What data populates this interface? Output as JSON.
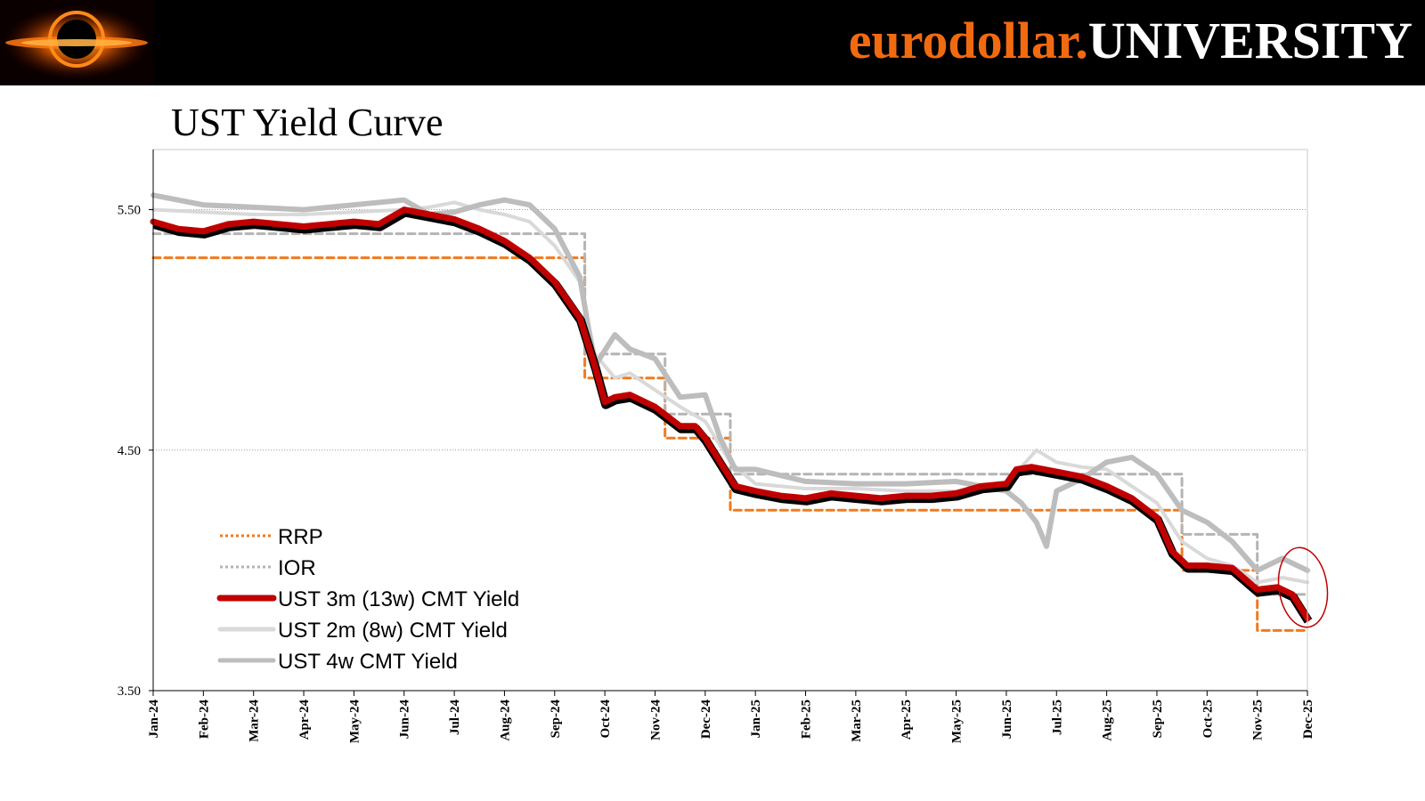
{
  "brand": {
    "part1": "eurodollar.",
    "part2": "UNIVERSITY"
  },
  "title": "UST Yield Curve",
  "colors": {
    "rrp": "#f07a1e",
    "ior": "#b4b4b4",
    "y3m": "#c00000",
    "y2m": "#d9d9d9",
    "y4w": "#bdbdbd",
    "annotation": "#c00000",
    "brand_orange": "#f26a10"
  },
  "chart_data": {
    "type": "line",
    "title": "UST Yield Curve",
    "xlabel": "",
    "ylabel": "",
    "ylim": [
      3.5,
      5.75
    ],
    "yticks": [
      3.5,
      4.5,
      5.5
    ],
    "ytick_labels": [
      "3.50",
      "4.50",
      "5.50"
    ],
    "x_range": [
      0,
      23
    ],
    "x_unit": "months since Jan-2024",
    "xtick_labels": [
      "Jan-24",
      "Feb-24",
      "Mar-24",
      "Apr-24",
      "May-24",
      "Jun-24",
      "Jul-24",
      "Aug-24",
      "Sep-24",
      "Oct-24",
      "Nov-24",
      "Dec-24",
      "Jan-25",
      "Feb-25",
      "Mar-25",
      "Apr-25",
      "May-25",
      "Jun-25",
      "Jul-25",
      "Aug-25",
      "Sep-25",
      "Oct-25",
      "Nov-25",
      "Dec-25"
    ],
    "gridlines": [
      4.5,
      5.5
    ],
    "legend_position": "bottom-left",
    "series": [
      {
        "name": "RRP",
        "style": "dotted-step",
        "points": [
          [
            0,
            5.3
          ],
          [
            8.6,
            5.3
          ],
          [
            8.6,
            4.8
          ],
          [
            10.2,
            4.8
          ],
          [
            10.2,
            4.55
          ],
          [
            11.5,
            4.55
          ],
          [
            11.5,
            4.25
          ],
          [
            20.5,
            4.25
          ],
          [
            20.5,
            4.0
          ],
          [
            22,
            4.0
          ],
          [
            22,
            3.75
          ],
          [
            23,
            3.75
          ]
        ]
      },
      {
        "name": "IOR",
        "style": "dotted-step",
        "points": [
          [
            0,
            5.4
          ],
          [
            8.6,
            5.4
          ],
          [
            8.6,
            4.9
          ],
          [
            10.2,
            4.9
          ],
          [
            10.2,
            4.65
          ],
          [
            11.5,
            4.65
          ],
          [
            11.5,
            4.4
          ],
          [
            20.5,
            4.4
          ],
          [
            20.5,
            4.15
          ],
          [
            22,
            4.15
          ],
          [
            22,
            3.9
          ],
          [
            23,
            3.9
          ]
        ]
      },
      {
        "name": "UST 3m (13w) CMT Yield",
        "style": "solid-thick",
        "points": [
          [
            0,
            5.45
          ],
          [
            0.5,
            5.42
          ],
          [
            1,
            5.41
          ],
          [
            1.5,
            5.44
          ],
          [
            2,
            5.45
          ],
          [
            2.5,
            5.44
          ],
          [
            3,
            5.43
          ],
          [
            3.5,
            5.44
          ],
          [
            4,
            5.45
          ],
          [
            4.5,
            5.44
          ],
          [
            5,
            5.5
          ],
          [
            5.5,
            5.48
          ],
          [
            6,
            5.46
          ],
          [
            6.5,
            5.42
          ],
          [
            7,
            5.37
          ],
          [
            7.5,
            5.3
          ],
          [
            8,
            5.2
          ],
          [
            8.5,
            5.05
          ],
          [
            8.8,
            4.85
          ],
          [
            9,
            4.7
          ],
          [
            9.2,
            4.72
          ],
          [
            9.5,
            4.73
          ],
          [
            10,
            4.68
          ],
          [
            10.5,
            4.6
          ],
          [
            10.8,
            4.6
          ],
          [
            11,
            4.55
          ],
          [
            11.3,
            4.45
          ],
          [
            11.6,
            4.35
          ],
          [
            12,
            4.33
          ],
          [
            12.5,
            4.31
          ],
          [
            13,
            4.3
          ],
          [
            13.5,
            4.32
          ],
          [
            14,
            4.31
          ],
          [
            14.5,
            4.3
          ],
          [
            15,
            4.31
          ],
          [
            15.5,
            4.31
          ],
          [
            16,
            4.32
          ],
          [
            16.5,
            4.35
          ],
          [
            17,
            4.36
          ],
          [
            17.2,
            4.42
          ],
          [
            17.5,
            4.43
          ],
          [
            18,
            4.41
          ],
          [
            18.5,
            4.39
          ],
          [
            19,
            4.35
          ],
          [
            19.5,
            4.3
          ],
          [
            20,
            4.22
          ],
          [
            20.3,
            4.08
          ],
          [
            20.6,
            4.02
          ],
          [
            21,
            4.02
          ],
          [
            21.5,
            4.01
          ],
          [
            22,
            3.92
          ],
          [
            22.4,
            3.93
          ],
          [
            22.7,
            3.9
          ],
          [
            23,
            3.8
          ]
        ]
      },
      {
        "name": "UST 2m (8w) CMT Yield",
        "style": "solid",
        "points": [
          [
            0,
            5.5
          ],
          [
            1,
            5.49
          ],
          [
            2,
            5.48
          ],
          [
            3,
            5.48
          ],
          [
            4,
            5.49
          ],
          [
            5,
            5.5
          ],
          [
            5.5,
            5.51
          ],
          [
            6,
            5.53
          ],
          [
            6.5,
            5.5
          ],
          [
            7,
            5.48
          ],
          [
            7.5,
            5.45
          ],
          [
            8,
            5.35
          ],
          [
            8.5,
            5.2
          ],
          [
            8.8,
            4.9
          ],
          [
            9.2,
            4.8
          ],
          [
            9.5,
            4.82
          ],
          [
            10,
            4.75
          ],
          [
            10.5,
            4.68
          ],
          [
            11,
            4.62
          ],
          [
            11.5,
            4.45
          ],
          [
            12,
            4.36
          ],
          [
            13,
            4.34
          ],
          [
            14,
            4.34
          ],
          [
            15,
            4.33
          ],
          [
            16,
            4.33
          ],
          [
            16.5,
            4.34
          ],
          [
            17,
            4.36
          ],
          [
            17.3,
            4.43
          ],
          [
            17.6,
            4.5
          ],
          [
            18,
            4.45
          ],
          [
            18.5,
            4.43
          ],
          [
            19,
            4.42
          ],
          [
            19.5,
            4.35
          ],
          [
            20,
            4.28
          ],
          [
            20.5,
            4.12
          ],
          [
            21,
            4.05
          ],
          [
            21.5,
            4.02
          ],
          [
            22,
            3.95
          ],
          [
            22.5,
            3.97
          ],
          [
            23,
            3.95
          ]
        ]
      },
      {
        "name": "UST 4w CMT Yield",
        "style": "solid-thick",
        "points": [
          [
            0,
            5.56
          ],
          [
            1,
            5.52
          ],
          [
            2,
            5.51
          ],
          [
            3,
            5.5
          ],
          [
            4,
            5.52
          ],
          [
            5,
            5.54
          ],
          [
            5.5,
            5.48
          ],
          [
            6,
            5.49
          ],
          [
            6.5,
            5.52
          ],
          [
            7,
            5.54
          ],
          [
            7.5,
            5.52
          ],
          [
            8,
            5.42
          ],
          [
            8.5,
            5.22
          ],
          [
            8.8,
            4.85
          ],
          [
            9.2,
            4.98
          ],
          [
            9.5,
            4.92
          ],
          [
            10,
            4.88
          ],
          [
            10.5,
            4.72
          ],
          [
            11,
            4.73
          ],
          [
            11.3,
            4.55
          ],
          [
            11.6,
            4.42
          ],
          [
            12,
            4.42
          ],
          [
            13,
            4.37
          ],
          [
            14,
            4.36
          ],
          [
            15,
            4.36
          ],
          [
            16,
            4.37
          ],
          [
            17,
            4.33
          ],
          [
            17.3,
            4.28
          ],
          [
            17.6,
            4.2
          ],
          [
            17.8,
            4.1
          ],
          [
            18,
            4.33
          ],
          [
            18.5,
            4.38
          ],
          [
            19,
            4.45
          ],
          [
            19.5,
            4.47
          ],
          [
            20,
            4.4
          ],
          [
            20.5,
            4.25
          ],
          [
            21,
            4.2
          ],
          [
            21.5,
            4.12
          ],
          [
            22,
            4.0
          ],
          [
            22.5,
            4.05
          ],
          [
            23,
            4.0
          ]
        ]
      }
    ]
  }
}
